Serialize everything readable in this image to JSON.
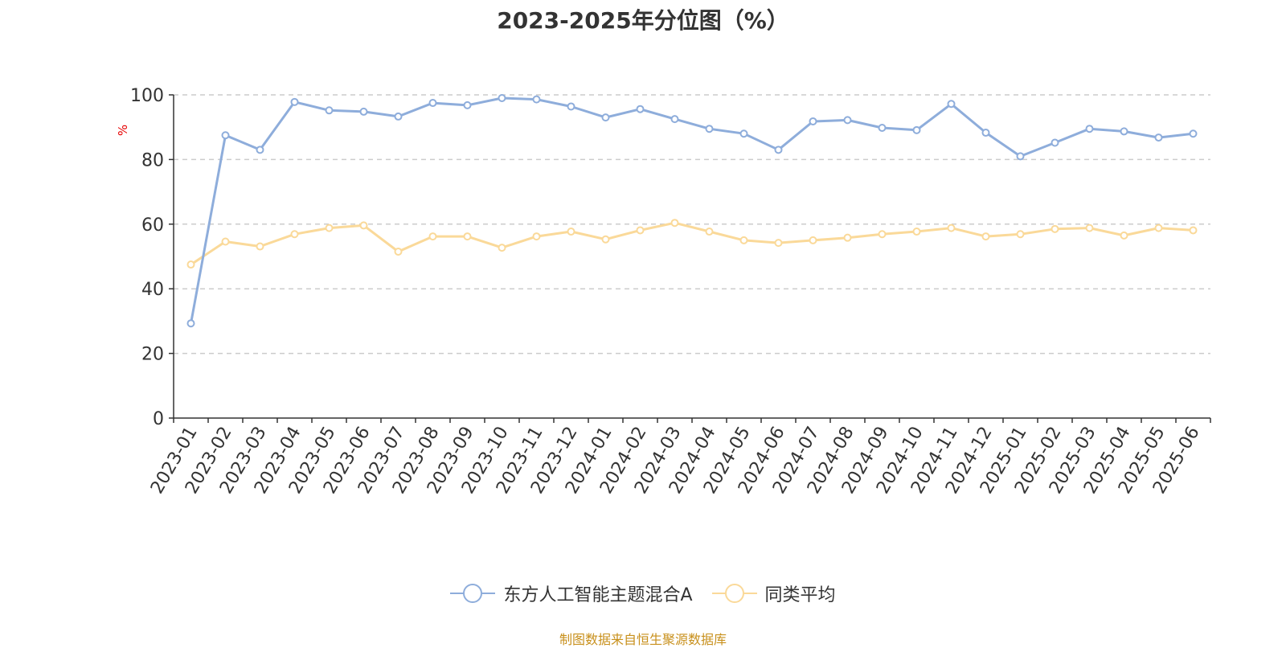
{
  "chart_data": {
    "type": "line",
    "title": "2023-2025年分位图（%）",
    "ylabel": "%",
    "xlabel": "",
    "ylim": [
      0,
      100
    ],
    "yticks": [
      0,
      20,
      40,
      60,
      80,
      100
    ],
    "grid": "horizontal dashed",
    "legend_position": "bottom",
    "categories": [
      "2023-01",
      "2023-02",
      "2023-03",
      "2023-04",
      "2023-05",
      "2023-06",
      "2023-07",
      "2023-08",
      "2023-09",
      "2023-10",
      "2023-11",
      "2023-12",
      "2024-01",
      "2024-02",
      "2024-03",
      "2024-04",
      "2024-05",
      "2024-06",
      "2024-07",
      "2024-08",
      "2024-09",
      "2024-10",
      "2024-11",
      "2024-12",
      "2025-01",
      "2025-02",
      "2025-03",
      "2025-04",
      "2025-05",
      "2025-06"
    ],
    "series": [
      {
        "name": "东方人工智能主题混合A",
        "color": "#8eaddb",
        "values": [
          29.3,
          87.5,
          83.0,
          97.8,
          95.2,
          94.8,
          93.3,
          97.5,
          96.8,
          99.0,
          98.6,
          96.4,
          93.0,
          95.6,
          92.5,
          89.5,
          88.0,
          83.0,
          91.8,
          92.2,
          89.8,
          89.1,
          97.2,
          88.3,
          81.0,
          85.2,
          89.5,
          88.7,
          86.8,
          88.0
        ]
      },
      {
        "name": "同类平均",
        "color": "#fad999",
        "values": [
          47.5,
          54.6,
          53.1,
          56.9,
          58.8,
          59.6,
          51.5,
          56.2,
          56.2,
          52.7,
          56.2,
          57.7,
          55.3,
          58.1,
          60.4,
          57.7,
          55.0,
          54.2,
          55.0,
          55.8,
          56.9,
          57.7,
          58.8,
          56.2,
          56.9,
          58.5,
          58.8,
          56.5,
          58.8,
          58.1
        ]
      }
    ]
  },
  "source_note": "制图数据来自恒生聚源数据库"
}
